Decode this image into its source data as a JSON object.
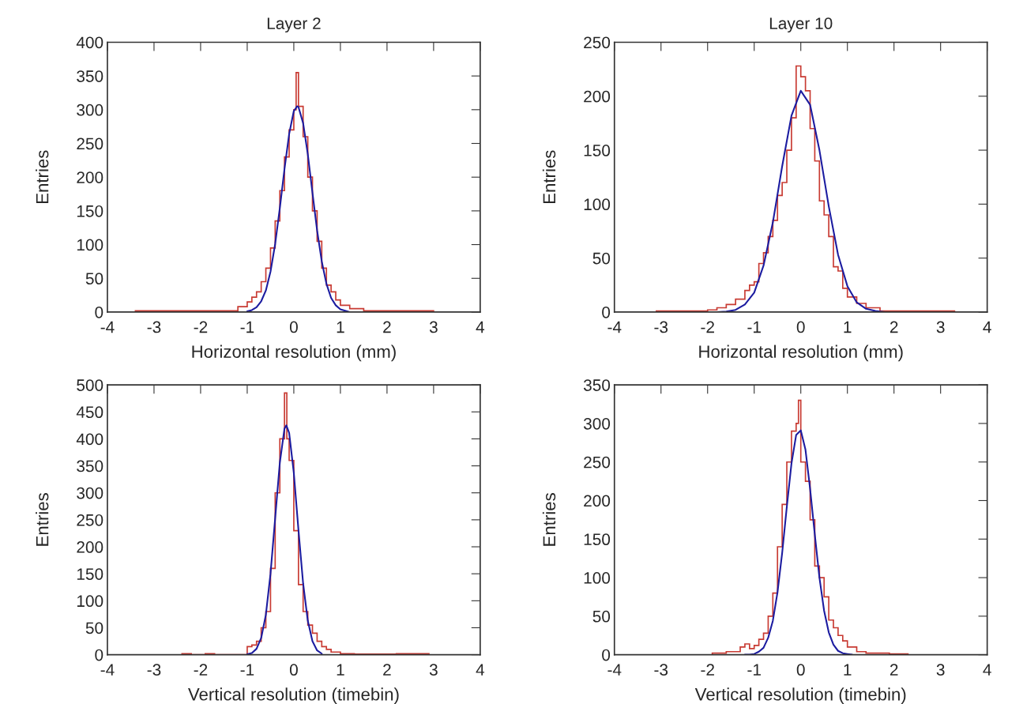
{
  "chart_data": [
    {
      "type": "histogram",
      "title": "Layer 2",
      "xlabel": "Horizontal resolution (mm)",
      "ylabel": "Entries",
      "color": "#c83a32",
      "bins": [
        -3.4,
        -1.2,
        -1.0,
        -0.9,
        -0.8,
        -0.7,
        -0.6,
        -0.5,
        -0.4,
        -0.3,
        -0.2,
        -0.1,
        0,
        0.05,
        0.1,
        0.2,
        0.3,
        0.4,
        0.5,
        0.6,
        0.7,
        0.8,
        0.9,
        1.0,
        1.2,
        1.5,
        3.0
      ],
      "values": [
        2,
        8,
        15,
        22,
        30,
        45,
        65,
        95,
        135,
        180,
        230,
        270,
        300,
        355,
        305,
        260,
        200,
        150,
        105,
        65,
        40,
        30,
        18,
        10,
        5,
        2
      ],
      "series": [
        {
          "type": "line",
          "color": "#1c1ca0",
          "x": [
            -1.0,
            -0.9,
            -0.8,
            -0.7,
            -0.6,
            -0.5,
            -0.4,
            -0.3,
            -0.2,
            -0.1,
            0,
            0.07,
            0.1,
            0.2,
            0.3,
            0.4,
            0.5,
            0.6,
            0.7,
            0.8,
            0.9,
            1.0,
            1.1,
            1.2
          ],
          "values": [
            1,
            3,
            7,
            16,
            32,
            60,
            101,
            154,
            212,
            264,
            298,
            305,
            304,
            280,
            234,
            177,
            121,
            75,
            42,
            21,
            10,
            4,
            2,
            0
          ]
        }
      ],
      "xlim": [
        -4,
        4
      ],
      "xticks": [
        -4,
        -3,
        -2,
        -1,
        0,
        1,
        2,
        3,
        4
      ],
      "ylim": [
        0,
        400
      ],
      "yticks": [
        0,
        50,
        100,
        150,
        200,
        250,
        300,
        350,
        400
      ]
    },
    {
      "type": "histogram",
      "title": "Layer 10",
      "xlabel": "Horizontal resolution (mm)",
      "ylabel": "Entries",
      "color": "#c83a32",
      "bins": [
        -3.1,
        -2.0,
        -1.8,
        -1.6,
        -1.4,
        -1.2,
        -1.1,
        -1.0,
        -0.9,
        -0.8,
        -0.7,
        -0.6,
        -0.5,
        -0.4,
        -0.3,
        -0.2,
        -0.1,
        0,
        0.1,
        0.2,
        0.3,
        0.4,
        0.5,
        0.6,
        0.7,
        0.8,
        0.9,
        1.0,
        1.2,
        1.4,
        1.7,
        3.3
      ],
      "values": [
        1,
        2,
        4,
        7,
        12,
        20,
        25,
        28,
        45,
        55,
        70,
        85,
        108,
        120,
        150,
        180,
        228,
        218,
        205,
        170,
        140,
        103,
        90,
        70,
        42,
        38,
        22,
        14,
        8,
        4,
        1
      ],
      "series": [
        {
          "type": "line",
          "color": "#1c1ca0",
          "x": [
            -2.0,
            -1.8,
            -1.6,
            -1.4,
            -1.2,
            -1.0,
            -0.8,
            -0.6,
            -0.4,
            -0.2,
            0,
            0.2,
            0.4,
            0.6,
            0.8,
            1.0,
            1.2,
            1.4,
            1.6,
            1.8
          ],
          "values": [
            0,
            0,
            0.5,
            2,
            7,
            18,
            43,
            83,
            135,
            182,
            205,
            192,
            150,
            98,
            53,
            24,
            9,
            3,
            1,
            0
          ]
        }
      ],
      "xlim": [
        -4,
        4
      ],
      "xticks": [
        -4,
        -3,
        -2,
        -1,
        0,
        1,
        2,
        3,
        4
      ],
      "ylim": [
        0,
        250
      ],
      "yticks": [
        0,
        50,
        100,
        150,
        200,
        250
      ]
    },
    {
      "type": "histogram",
      "xlabel": "Vertical resolution (timebin)",
      "ylabel": "Entries",
      "color": "#c83a32",
      "bins": [
        -2.4,
        -2.2,
        -1.9,
        -1.7,
        -1.0,
        -0.9,
        -0.8,
        -0.7,
        -0.6,
        -0.5,
        -0.4,
        -0.3,
        -0.2,
        -0.15,
        -0.1,
        0,
        0.1,
        0.2,
        0.3,
        0.4,
        0.5,
        0.6,
        0.7,
        0.8,
        1.0,
        1.3,
        2.2,
        2.9
      ],
      "values": [
        2,
        0,
        2,
        0,
        15,
        18,
        25,
        50,
        80,
        160,
        300,
        400,
        485,
        400,
        360,
        230,
        130,
        80,
        55,
        40,
        25,
        15,
        10,
        5,
        2,
        1,
        2
      ],
      "series": [
        {
          "type": "line",
          "color": "#1c1ca0",
          "x": [
            -1.0,
            -0.9,
            -0.8,
            -0.7,
            -0.6,
            -0.5,
            -0.4,
            -0.3,
            -0.2,
            -0.16,
            -0.1,
            0,
            0.1,
            0.2,
            0.3,
            0.4,
            0.5,
            0.6
          ],
          "values": [
            1,
            3,
            11,
            31,
            74,
            150,
            253,
            356,
            419,
            425,
            411,
            337,
            231,
            132,
            63,
            25,
            8,
            2
          ]
        }
      ],
      "xlim": [
        -4,
        4
      ],
      "xticks": [
        -4,
        -3,
        -2,
        -1,
        0,
        1,
        2,
        3,
        4
      ],
      "ylim": [
        0,
        500
      ],
      "yticks": [
        0,
        50,
        100,
        150,
        200,
        250,
        300,
        350,
        400,
        450,
        500
      ]
    },
    {
      "type": "histogram",
      "xlabel": "Vertical resolution (timebin)",
      "ylabel": "Entries",
      "color": "#c83a32",
      "bins": [
        -1.9,
        -1.6,
        -1.3,
        -1.2,
        -1.1,
        -1.0,
        -0.9,
        -0.8,
        -0.7,
        -0.6,
        -0.5,
        -0.4,
        -0.3,
        -0.2,
        -0.1,
        -0.05,
        0,
        0.1,
        0.2,
        0.3,
        0.4,
        0.5,
        0.6,
        0.7,
        0.8,
        0.9,
        1.0,
        1.2,
        1.4,
        1.9,
        2.3
      ],
      "values": [
        2,
        4,
        10,
        14,
        8,
        12,
        20,
        28,
        50,
        80,
        140,
        195,
        250,
        290,
        300,
        330,
        250,
        225,
        175,
        115,
        100,
        75,
        45,
        35,
        25,
        18,
        10,
        4,
        2,
        1
      ],
      "series": [
        {
          "type": "line",
          "color": "#1c1ca0",
          "x": [
            -1.2,
            -1.1,
            -1.0,
            -0.9,
            -0.8,
            -0.7,
            -0.6,
            -0.5,
            -0.4,
            -0.3,
            -0.2,
            -0.1,
            0,
            0.1,
            0.2,
            0.3,
            0.4,
            0.5,
            0.6,
            0.7,
            0.8,
            0.9,
            1.0,
            1.1
          ],
          "values": [
            0,
            0,
            1,
            4,
            9,
            22,
            44,
            81,
            132,
            192,
            248,
            285,
            291,
            266,
            215,
            156,
            100,
            57,
            29,
            13,
            5,
            2,
            1,
            0
          ]
        }
      ],
      "xlim": [
        -4,
        4
      ],
      "xticks": [
        -4,
        -3,
        -2,
        -1,
        0,
        1,
        2,
        3,
        4
      ],
      "ylim": [
        0,
        350
      ],
      "yticks": [
        0,
        50,
        100,
        150,
        200,
        250,
        300,
        350
      ]
    }
  ]
}
